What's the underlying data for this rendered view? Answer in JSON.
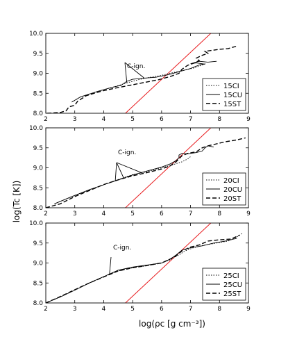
{
  "figure": {
    "x_axis_label": "log(ρc [g cm⁻³])",
    "y_axis_label": "log(Tc [K])"
  },
  "chart_data": [
    {
      "type": "line",
      "xlim": [
        2,
        9
      ],
      "ylim": [
        8.0,
        10.0
      ],
      "x_ticks": [
        "2",
        "3",
        "4",
        "5",
        "6",
        "7",
        "8",
        "9"
      ],
      "y_ticks": [
        "8.0",
        "8.5",
        "9.0",
        "9.5",
        "10.0"
      ],
      "annotation": "C-ign.",
      "legend_position": "lower-right",
      "reference_line": {
        "color": "#e8191c",
        "points": [
          [
            4.75,
            8.0
          ],
          [
            7.7,
            10.0
          ]
        ]
      },
      "series": [
        {
          "name": "15CI",
          "style": "dotted",
          "points": [
            [
              2.9,
              8.28
            ],
            [
              3.2,
              8.41
            ],
            [
              3.8,
              8.55
            ],
            [
              4.4,
              8.67
            ],
            [
              4.8,
              8.76
            ],
            [
              5.2,
              8.84
            ],
            [
              5.6,
              8.9
            ],
            [
              6.0,
              8.95
            ],
            [
              6.4,
              9.02
            ],
            [
              6.8,
              9.08
            ],
            [
              7.1,
              9.13
            ],
            [
              7.3,
              9.18
            ],
            [
              7.45,
              9.22
            ],
            [
              7.55,
              9.25
            ]
          ]
        },
        {
          "name": "15CU",
          "style": "solid",
          "points": [
            [
              2.9,
              8.28
            ],
            [
              3.2,
              8.41
            ],
            [
              3.8,
              8.55
            ],
            [
              4.3,
              8.65
            ],
            [
              4.6,
              8.7
            ],
            [
              4.8,
              8.8
            ],
            [
              5.0,
              8.85
            ],
            [
              5.4,
              8.88
            ],
            [
              5.8,
              8.9
            ],
            [
              6.2,
              8.96
            ],
            [
              6.6,
              9.04
            ],
            [
              7.0,
              9.12
            ],
            [
              7.2,
              9.18
            ],
            [
              7.35,
              9.22
            ],
            [
              7.5,
              9.23
            ],
            [
              7.2,
              9.26
            ],
            [
              7.0,
              9.24
            ],
            [
              7.3,
              9.3
            ],
            [
              7.6,
              9.28
            ],
            [
              7.9,
              9.3
            ]
          ]
        },
        {
          "name": "15ST",
          "style": "dashed",
          "points": [
            [
              2.05,
              8.0
            ],
            [
              2.5,
              8.02
            ],
            [
              2.7,
              8.06
            ],
            [
              2.8,
              8.16
            ],
            [
              3.0,
              8.2
            ],
            [
              3.1,
              8.3
            ],
            [
              3.4,
              8.44
            ],
            [
              3.9,
              8.55
            ],
            [
              4.4,
              8.63
            ],
            [
              4.9,
              8.7
            ],
            [
              5.4,
              8.77
            ],
            [
              5.9,
              8.84
            ],
            [
              6.3,
              8.92
            ],
            [
              6.6,
              9.0
            ],
            [
              6.7,
              9.1
            ],
            [
              6.9,
              9.2
            ],
            [
              7.1,
              9.25
            ],
            [
              7.3,
              9.32
            ],
            [
              7.2,
              9.38
            ],
            [
              7.4,
              9.45
            ],
            [
              7.6,
              9.5
            ],
            [
              7.5,
              9.55
            ],
            [
              7.7,
              9.57
            ],
            [
              8.0,
              9.6
            ],
            [
              8.3,
              9.62
            ],
            [
              8.6,
              9.68
            ]
          ]
        }
      ]
    },
    {
      "type": "line",
      "xlim": [
        2,
        9
      ],
      "ylim": [
        8.0,
        10.0
      ],
      "x_ticks": [
        "2",
        "3",
        "4",
        "5",
        "6",
        "7",
        "8",
        "9"
      ],
      "y_ticks": [
        "8.0",
        "8.5",
        "9.0",
        "9.5",
        "10.0"
      ],
      "annotation": "C-ign.",
      "legend_position": "lower-right",
      "reference_line": {
        "color": "#e8191c",
        "points": [
          [
            4.75,
            8.0
          ],
          [
            7.7,
            10.0
          ]
        ]
      },
      "series": [
        {
          "name": "20CI",
          "style": "dotted",
          "points": [
            [
              2.3,
              8.1
            ],
            [
              2.9,
              8.28
            ],
            [
              3.5,
              8.45
            ],
            [
              4.1,
              8.6
            ],
            [
              4.6,
              8.73
            ],
            [
              5.0,
              8.83
            ],
            [
              5.5,
              8.9
            ],
            [
              6.0,
              9.0
            ],
            [
              6.4,
              9.08
            ],
            [
              6.7,
              9.15
            ],
            [
              6.9,
              9.22
            ],
            [
              7.0,
              9.28
            ]
          ]
        },
        {
          "name": "20CU",
          "style": "solid",
          "points": [
            [
              2.3,
              8.1
            ],
            [
              2.9,
              8.28
            ],
            [
              3.5,
              8.45
            ],
            [
              4.1,
              8.6
            ],
            [
              4.6,
              8.72
            ],
            [
              5.0,
              8.82
            ],
            [
              5.5,
              8.92
            ],
            [
              6.0,
              9.02
            ],
            [
              6.3,
              9.1
            ],
            [
              6.5,
              9.18
            ],
            [
              6.6,
              9.25
            ],
            [
              6.6,
              9.32
            ],
            [
              6.7,
              9.36
            ],
            [
              6.9,
              9.35
            ],
            [
              7.2,
              9.38
            ],
            [
              7.4,
              9.42
            ],
            [
              7.5,
              9.5
            ],
            [
              7.6,
              9.55
            ],
            [
              7.8,
              9.52
            ]
          ]
        },
        {
          "name": "20ST",
          "style": "dashed",
          "points": [
            [
              2.0,
              8.0
            ],
            [
              2.5,
              8.1
            ],
            [
              3.0,
              8.28
            ],
            [
              3.5,
              8.43
            ],
            [
              4.0,
              8.58
            ],
            [
              4.5,
              8.7
            ],
            [
              5.0,
              8.8
            ],
            [
              5.5,
              8.88
            ],
            [
              6.0,
              8.97
            ],
            [
              6.3,
              9.05
            ],
            [
              6.5,
              9.15
            ],
            [
              6.7,
              9.3
            ],
            [
              6.9,
              9.36
            ],
            [
              7.2,
              9.4
            ],
            [
              7.4,
              9.5
            ],
            [
              7.6,
              9.55
            ],
            [
              7.9,
              9.6
            ],
            [
              8.2,
              9.65
            ],
            [
              8.6,
              9.7
            ],
            [
              8.9,
              9.75
            ]
          ]
        }
      ]
    },
    {
      "type": "line",
      "xlim": [
        2,
        9
      ],
      "ylim": [
        8.0,
        10.0
      ],
      "x_ticks": [
        "2",
        "3",
        "4",
        "5",
        "6",
        "7",
        "8",
        "9"
      ],
      "y_ticks": [
        "8.0",
        "8.5",
        "9.0",
        "9.5",
        "10.0"
      ],
      "annotation": "C-ign.",
      "legend_position": "lower-right",
      "reference_line": {
        "color": "#e8191c",
        "points": [
          [
            4.75,
            8.0
          ],
          [
            7.7,
            10.0
          ]
        ]
      },
      "series": [
        {
          "name": "25CI",
          "style": "dotted",
          "points": [
            [
              2.0,
              8.0
            ],
            [
              2.5,
              8.15
            ],
            [
              3.0,
              8.32
            ],
            [
              3.5,
              8.5
            ],
            [
              4.0,
              8.66
            ],
            [
              4.5,
              8.8
            ],
            [
              5.0,
              8.88
            ],
            [
              5.5,
              8.93
            ],
            [
              6.0,
              9.0
            ],
            [
              6.3,
              9.08
            ],
            [
              6.6,
              9.2
            ],
            [
              6.8,
              9.3
            ],
            [
              7.1,
              9.38
            ],
            [
              7.5,
              9.45
            ],
            [
              7.9,
              9.5
            ],
            [
              8.3,
              9.55
            ],
            [
              8.6,
              9.65
            ],
            [
              8.8,
              9.75
            ]
          ]
        },
        {
          "name": "25CU",
          "style": "solid",
          "points": [
            [
              2.0,
              8.0
            ],
            [
              2.5,
              8.15
            ],
            [
              3.0,
              8.32
            ],
            [
              3.5,
              8.5
            ],
            [
              4.0,
              8.66
            ],
            [
              4.5,
              8.82
            ],
            [
              5.0,
              8.9
            ],
            [
              5.5,
              8.95
            ],
            [
              6.0,
              9.0
            ],
            [
              6.3,
              9.1
            ],
            [
              6.5,
              9.2
            ],
            [
              6.7,
              9.32
            ],
            [
              7.0,
              9.38
            ],
            [
              7.4,
              9.43
            ],
            [
              7.8,
              9.5
            ],
            [
              8.2,
              9.55
            ],
            [
              8.6,
              9.62
            ]
          ]
        },
        {
          "name": "25ST",
          "style": "dashed",
          "points": [
            [
              2.0,
              8.0
            ],
            [
              2.5,
              8.16
            ],
            [
              3.0,
              8.33
            ],
            [
              3.5,
              8.5
            ],
            [
              4.0,
              8.65
            ],
            [
              4.5,
              8.8
            ],
            [
              5.0,
              8.88
            ],
            [
              5.5,
              8.94
            ],
            [
              6.0,
              9.0
            ],
            [
              6.3,
              9.1
            ],
            [
              6.5,
              9.18
            ],
            [
              6.7,
              9.3
            ],
            [
              7.0,
              9.4
            ],
            [
              7.3,
              9.45
            ],
            [
              7.6,
              9.55
            ],
            [
              8.0,
              9.58
            ],
            [
              8.4,
              9.6
            ],
            [
              8.7,
              9.7
            ]
          ]
        }
      ]
    }
  ]
}
